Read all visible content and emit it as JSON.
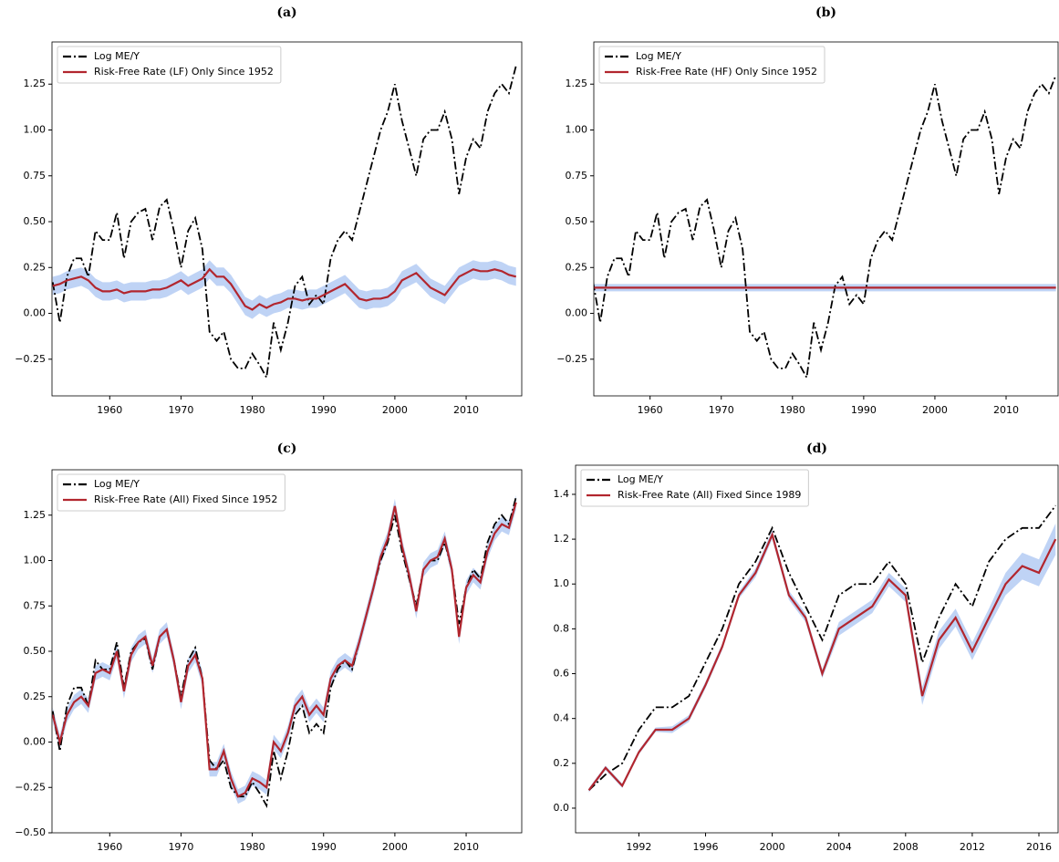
{
  "chart_data": [
    {
      "type": "line",
      "title": "(a)",
      "x": [
        1952,
        1953,
        1954,
        1955,
        1956,
        1957,
        1958,
        1959,
        1960,
        1961,
        1962,
        1963,
        1964,
        1965,
        1966,
        1967,
        1968,
        1969,
        1970,
        1971,
        1972,
        1973,
        1974,
        1975,
        1976,
        1977,
        1978,
        1979,
        1980,
        1981,
        1982,
        1983,
        1984,
        1985,
        1986,
        1987,
        1988,
        1989,
        1990,
        1991,
        1992,
        1993,
        1994,
        1995,
        1996,
        1997,
        1998,
        1999,
        2000,
        2001,
        2002,
        2003,
        2004,
        2005,
        2006,
        2007,
        2008,
        2009,
        2010,
        2011,
        2012,
        2013,
        2014,
        2015,
        2016,
        2017
      ],
      "xlim": [
        1951.9,
        2017.8
      ],
      "xticks": [
        1960,
        1970,
        1980,
        1990,
        2000,
        2010
      ],
      "ylim": [
        -0.45,
        1.48
      ],
      "yticks": [
        {
          "value": -0.25,
          "label": "−0.25"
        },
        {
          "value": 0,
          "label": "0.00"
        },
        0.25,
        {
          "value": 0.5,
          "label": "0.50"
        },
        0.75,
        {
          "value": 1,
          "label": "1.00"
        },
        1.25
      ],
      "series": [
        {
          "name": "Log ME/Y",
          "color": "#000000",
          "linestyle": "dashdot",
          "values": [
            0.17,
            -0.05,
            0.2,
            0.3,
            0.3,
            0.2,
            0.45,
            0.4,
            0.4,
            0.55,
            0.3,
            0.5,
            0.55,
            0.57,
            0.4,
            0.58,
            0.62,
            0.45,
            0.25,
            0.45,
            0.52,
            0.35,
            -0.1,
            -0.15,
            -0.1,
            -0.25,
            -0.3,
            -0.3,
            -0.22,
            -0.28,
            -0.35,
            -0.05,
            -0.2,
            -0.05,
            0.15,
            0.2,
            0.05,
            0.1,
            0.05,
            0.3,
            0.4,
            0.45,
            0.4,
            0.55,
            0.7,
            0.85,
            1.0,
            1.1,
            1.25,
            1.05,
            0.9,
            0.75,
            0.95,
            1.0,
            1.0,
            1.1,
            0.95,
            0.65,
            0.85,
            0.95,
            0.9,
            1.1,
            1.2,
            1.25,
            1.2,
            1.35
          ]
        },
        {
          "name": "Risk-Free Rate (LF) Only Since 1952",
          "color": "#b2262e",
          "linestyle": "solid",
          "band_color": "#aac4f2",
          "error": 0.05,
          "values": [
            0.15,
            0.16,
            0.18,
            0.19,
            0.2,
            0.18,
            0.14,
            0.12,
            0.12,
            0.13,
            0.11,
            0.12,
            0.12,
            0.12,
            0.13,
            0.13,
            0.14,
            0.16,
            0.18,
            0.15,
            0.17,
            0.19,
            0.24,
            0.2,
            0.2,
            0.16,
            0.1,
            0.04,
            0.02,
            0.05,
            0.03,
            0.05,
            0.06,
            0.08,
            0.08,
            0.07,
            0.08,
            0.08,
            0.1,
            0.12,
            0.14,
            0.16,
            0.12,
            0.08,
            0.07,
            0.08,
            0.08,
            0.09,
            0.12,
            0.18,
            0.2,
            0.22,
            0.18,
            0.14,
            0.12,
            0.1,
            0.15,
            0.2,
            0.22,
            0.24,
            0.23,
            0.23,
            0.24,
            0.23,
            0.21,
            0.2
          ]
        }
      ]
    },
    {
      "type": "line",
      "title": "(b)",
      "x": [
        1952,
        1953,
        1954,
        1955,
        1956,
        1957,
        1958,
        1959,
        1960,
        1961,
        1962,
        1963,
        1964,
        1965,
        1966,
        1967,
        1968,
        1969,
        1970,
        1971,
        1972,
        1973,
        1974,
        1975,
        1976,
        1977,
        1978,
        1979,
        1980,
        1981,
        1982,
        1983,
        1984,
        1985,
        1986,
        1987,
        1988,
        1989,
        1990,
        1991,
        1992,
        1993,
        1994,
        1995,
        1996,
        1997,
        1998,
        1999,
        2000,
        2001,
        2002,
        2003,
        2004,
        2005,
        2006,
        2007,
        2008,
        2009,
        2010,
        2011,
        2012,
        2013,
        2014,
        2015,
        2016,
        2017
      ],
      "xlim": [
        1952.1,
        2017.3
      ],
      "xticks": [
        1960,
        1970,
        1980,
        1990,
        2000,
        2010
      ],
      "ylim": [
        -0.45,
        1.48
      ],
      "yticks": [
        {
          "value": -0.25,
          "label": "−0.25"
        },
        {
          "value": 0,
          "label": "0.00"
        },
        0.25,
        {
          "value": 0.5,
          "label": "0.50"
        },
        0.75,
        {
          "value": 1,
          "label": "1.00"
        },
        1.25
      ],
      "series": [
        {
          "name": "Log ME/Y",
          "color": "#000000",
          "linestyle": "dashdot",
          "values": [
            0.17,
            -0.05,
            0.2,
            0.3,
            0.3,
            0.2,
            0.45,
            0.4,
            0.4,
            0.55,
            0.3,
            0.5,
            0.55,
            0.57,
            0.4,
            0.58,
            0.62,
            0.45,
            0.25,
            0.45,
            0.52,
            0.35,
            -0.1,
            -0.15,
            -0.1,
            -0.25,
            -0.3,
            -0.3,
            -0.22,
            -0.28,
            -0.35,
            -0.05,
            -0.2,
            -0.05,
            0.15,
            0.2,
            0.05,
            0.1,
            0.05,
            0.3,
            0.4,
            0.45,
            0.4,
            0.55,
            0.7,
            0.85,
            1.0,
            1.1,
            1.25,
            1.05,
            0.9,
            0.75,
            0.95,
            1.0,
            1.0,
            1.1,
            0.95,
            0.65,
            0.85,
            0.95,
            0.9,
            1.1,
            1.2,
            1.25,
            1.2,
            1.3
          ]
        },
        {
          "name": "Risk-Free Rate (HF) Only Since 1952",
          "color": "#b2262e",
          "linestyle": "solid",
          "band_color": "#aac4f2",
          "error": 0.02,
          "values": [
            0.14,
            0.14,
            0.14,
            0.14,
            0.14,
            0.14,
            0.14,
            0.14,
            0.14,
            0.14,
            0.14,
            0.14,
            0.14,
            0.14,
            0.14,
            0.14,
            0.14,
            0.14,
            0.14,
            0.14,
            0.14,
            0.14,
            0.14,
            0.14,
            0.14,
            0.14,
            0.14,
            0.14,
            0.14,
            0.14,
            0.14,
            0.14,
            0.14,
            0.14,
            0.14,
            0.14,
            0.14,
            0.14,
            0.14,
            0.14,
            0.14,
            0.14,
            0.14,
            0.14,
            0.14,
            0.14,
            0.14,
            0.14,
            0.14,
            0.14,
            0.14,
            0.14,
            0.14,
            0.14,
            0.14,
            0.14,
            0.14,
            0.14,
            0.14,
            0.14,
            0.14,
            0.14,
            0.14,
            0.14,
            0.14,
            0.14
          ]
        }
      ]
    },
    {
      "type": "line",
      "title": "(c)",
      "x": [
        1952,
        1953,
        1954,
        1955,
        1956,
        1957,
        1958,
        1959,
        1960,
        1961,
        1962,
        1963,
        1964,
        1965,
        1966,
        1967,
        1968,
        1969,
        1970,
        1971,
        1972,
        1973,
        1974,
        1975,
        1976,
        1977,
        1978,
        1979,
        1980,
        1981,
        1982,
        1983,
        1984,
        1985,
        1986,
        1987,
        1988,
        1989,
        1990,
        1991,
        1992,
        1993,
        1994,
        1995,
        1996,
        1997,
        1998,
        1999,
        2000,
        2001,
        2002,
        2003,
        2004,
        2005,
        2006,
        2007,
        2008,
        2009,
        2010,
        2011,
        2012,
        2013,
        2014,
        2015,
        2016,
        2017
      ],
      "xlim": [
        1951.9,
        2017.8
      ],
      "xticks": [
        1960,
        1970,
        1980,
        1990,
        2000,
        2010
      ],
      "ylim": [
        -0.5,
        1.5
      ],
      "yticks": [
        {
          "value": -0.5,
          "label": "−0.50"
        },
        {
          "value": -0.25,
          "label": "−0.25"
        },
        {
          "value": 0,
          "label": "0.00"
        },
        0.25,
        {
          "value": 0.5,
          "label": "0.50"
        },
        0.75,
        {
          "value": 1,
          "label": "1.00"
        },
        1.25
      ],
      "series": [
        {
          "name": "Log ME/Y",
          "color": "#000000",
          "linestyle": "dashdot",
          "values": [
            0.17,
            -0.05,
            0.2,
            0.3,
            0.3,
            0.2,
            0.45,
            0.4,
            0.4,
            0.55,
            0.3,
            0.5,
            0.55,
            0.57,
            0.4,
            0.58,
            0.62,
            0.45,
            0.25,
            0.45,
            0.52,
            0.35,
            -0.1,
            -0.15,
            -0.1,
            -0.25,
            -0.3,
            -0.3,
            -0.22,
            -0.28,
            -0.35,
            -0.05,
            -0.2,
            -0.05,
            0.15,
            0.2,
            0.05,
            0.1,
            0.05,
            0.3,
            0.4,
            0.45,
            0.4,
            0.55,
            0.7,
            0.85,
            1.0,
            1.1,
            1.25,
            1.05,
            0.9,
            0.75,
            0.95,
            1.0,
            1.0,
            1.1,
            0.95,
            0.65,
            0.85,
            0.95,
            0.9,
            1.1,
            1.2,
            1.25,
            1.2,
            1.35
          ]
        },
        {
          "name": "Risk-Free Rate (All) Fixed Since 1952",
          "color": "#b2262e",
          "linestyle": "solid",
          "band_color": "#aac4f2",
          "error": 0.04,
          "values": [
            0.15,
            0.0,
            0.15,
            0.22,
            0.25,
            0.2,
            0.38,
            0.4,
            0.38,
            0.5,
            0.28,
            0.48,
            0.55,
            0.58,
            0.42,
            0.58,
            0.62,
            0.45,
            0.22,
            0.42,
            0.48,
            0.35,
            -0.15,
            -0.15,
            -0.05,
            -0.2,
            -0.3,
            -0.28,
            -0.2,
            -0.22,
            -0.25,
            0.0,
            -0.05,
            0.05,
            0.2,
            0.25,
            0.15,
            0.2,
            0.15,
            0.35,
            0.42,
            0.45,
            0.42,
            0.55,
            0.7,
            0.85,
            1.02,
            1.12,
            1.3,
            1.08,
            0.92,
            0.72,
            0.95,
            1.0,
            1.02,
            1.12,
            0.95,
            0.58,
            0.85,
            0.92,
            0.88,
            1.05,
            1.15,
            1.2,
            1.18,
            1.32
          ]
        }
      ]
    },
    {
      "type": "line",
      "title": "(d)",
      "x": [
        1989,
        1990,
        1991,
        1992,
        1993,
        1994,
        1995,
        1996,
        1997,
        1998,
        1999,
        2000,
        2001,
        2002,
        2003,
        2004,
        2005,
        2006,
        2007,
        2008,
        2009,
        2010,
        2011,
        2012,
        2013,
        2014,
        2015,
        2016,
        2017
      ],
      "xlim": [
        1988.2,
        2017.15
      ],
      "xticks": [
        1992,
        1996,
        2000,
        2004,
        2008,
        2012,
        2016
      ],
      "ylim": [
        -0.11,
        1.53
      ],
      "yticks": [
        {
          "value": 0,
          "label": "0.0"
        },
        0.2,
        0.4,
        0.6,
        0.8,
        {
          "value": 1,
          "label": "1.0"
        },
        1.2,
        1.4
      ],
      "series": [
        {
          "name": "Log ME/Y",
          "color": "#000000",
          "linestyle": "dashdot",
          "values": [
            0.08,
            0.15,
            0.2,
            0.35,
            0.45,
            0.45,
            0.5,
            0.65,
            0.8,
            1.0,
            1.1,
            1.25,
            1.05,
            0.9,
            0.75,
            0.95,
            1.0,
            1.0,
            1.1,
            1.0,
            0.65,
            0.85,
            1.0,
            0.9,
            1.1,
            1.2,
            1.25,
            1.25,
            1.35
          ]
        },
        {
          "name": "Risk-Free Rate (All) Fixed Since 1989",
          "color": "#b2262e",
          "linestyle": "solid",
          "band_color": "#aac4f2",
          "error": [
            0.01,
            0.01,
            0.01,
            0.01,
            0.01,
            0.015,
            0.015,
            0.015,
            0.015,
            0.015,
            0.02,
            0.02,
            0.02,
            0.02,
            0.02,
            0.03,
            0.03,
            0.03,
            0.03,
            0.03,
            0.04,
            0.04,
            0.04,
            0.04,
            0.04,
            0.05,
            0.06,
            0.06,
            0.07
          ],
          "values": [
            0.08,
            0.18,
            0.1,
            0.25,
            0.35,
            0.35,
            0.4,
            0.55,
            0.72,
            0.95,
            1.05,
            1.22,
            0.95,
            0.85,
            0.6,
            0.8,
            0.85,
            0.9,
            1.02,
            0.95,
            0.5,
            0.75,
            0.85,
            0.7,
            0.85,
            1.0,
            1.08,
            1.05,
            1.2
          ]
        }
      ]
    }
  ]
}
